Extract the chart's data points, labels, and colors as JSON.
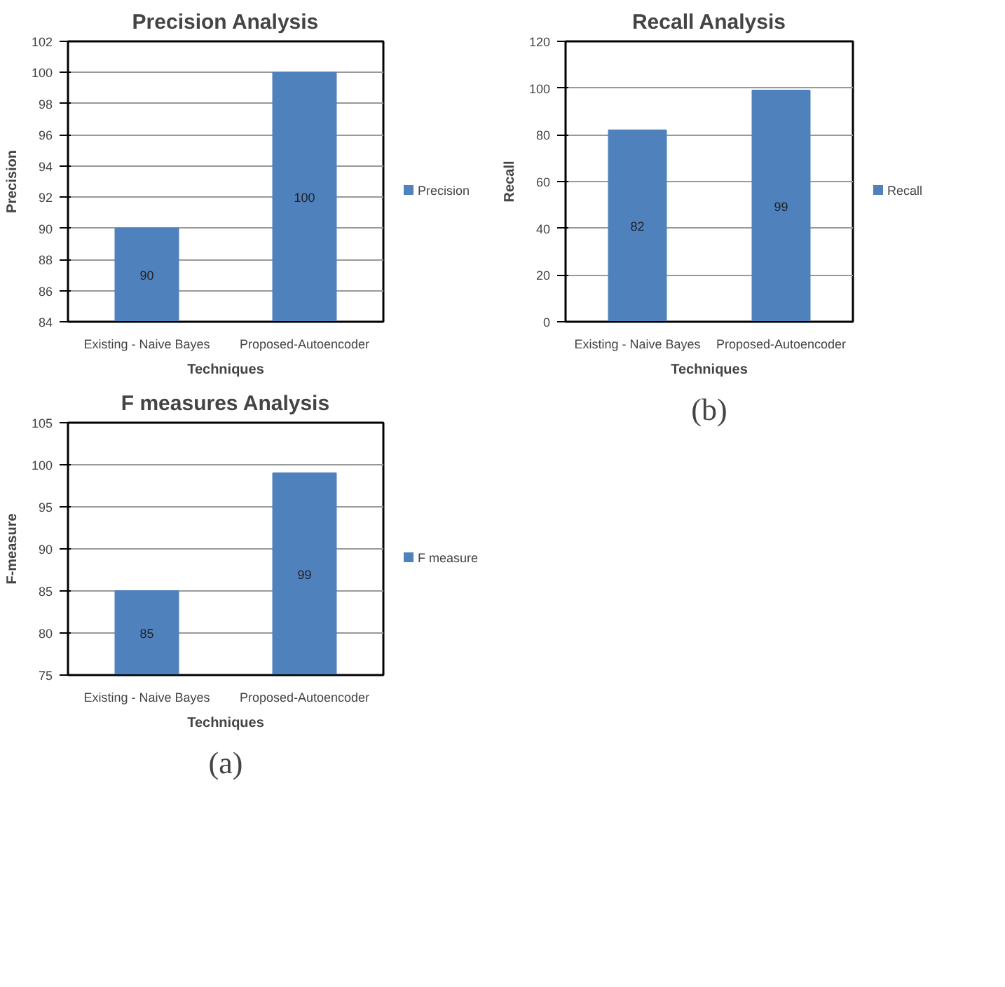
{
  "chart_data": [
    {
      "type": "bar",
      "title": "Precision Analysis",
      "xlabel": "Techniques",
      "ylabel": "Precision",
      "categories": [
        "Existing - Naive Bayes",
        "Proposed-Autoencoder"
      ],
      "series": [
        {
          "name": "Precision",
          "color": "#4f81bd",
          "values": [
            90,
            100
          ]
        }
      ],
      "ylim": [
        84,
        102
      ],
      "yticks": [
        84,
        86,
        88,
        90,
        92,
        94,
        96,
        98,
        100,
        102
      ],
      "grid": "y",
      "legend": "right",
      "data_labels": true
    },
    {
      "type": "bar",
      "title": "Recall Analysis",
      "xlabel": "Techniques",
      "ylabel": "Recall",
      "categories": [
        "Existing - Naive Bayes",
        "Proposed-Autoencoder"
      ],
      "series": [
        {
          "name": "Recall",
          "color": "#4f81bd",
          "values": [
            82,
            99
          ]
        }
      ],
      "ylim": [
        0,
        120
      ],
      "yticks": [
        0,
        20,
        40,
        60,
        80,
        100,
        120
      ],
      "grid": "y",
      "legend": "right",
      "data_labels": true,
      "annotations": [
        "(b)"
      ]
    },
    {
      "type": "bar",
      "title": "F measures Analysis",
      "xlabel": "Techniques",
      "ylabel": "F-measure",
      "categories": [
        "Existing - Naive Bayes",
        "Proposed-Autoencoder"
      ],
      "series": [
        {
          "name": "F measure",
          "color": "#4f81bd",
          "values": [
            85,
            99
          ]
        }
      ],
      "ylim": [
        75,
        105
      ],
      "yticks": [
        75,
        80,
        85,
        90,
        95,
        100,
        105
      ],
      "grid": "y",
      "legend": "right",
      "data_labels": true,
      "annotations": [
        "(a)"
      ]
    }
  ]
}
